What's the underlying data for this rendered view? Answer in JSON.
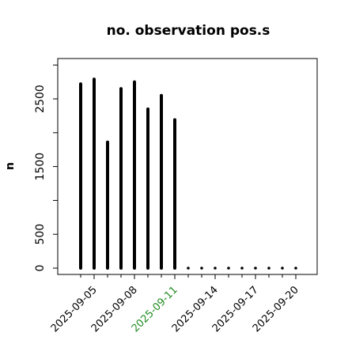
{
  "chart_data": {
    "type": "bar",
    "title": "no. observation pos.s",
    "ylabel": "n",
    "xlabel": "",
    "ylim": [
      -80,
      3000
    ],
    "yticks": [
      0,
      500,
      1500,
      2500
    ],
    "ytick_labels": [
      "0",
      "500",
      "1500",
      "2500"
    ],
    "y_minor_ticks": [
      1000,
      2000,
      3000
    ],
    "x": [
      "2025-09-04",
      "2025-09-05",
      "2025-09-06",
      "2025-09-07",
      "2025-09-08",
      "2025-09-09",
      "2025-09-10",
      "2025-09-11",
      "2025-09-12",
      "2025-09-13",
      "2025-09-14",
      "2025-09-15",
      "2025-09-16",
      "2025-09-17",
      "2025-09-18",
      "2025-09-19",
      "2025-09-20"
    ],
    "values": [
      2720,
      2790,
      1860,
      2650,
      2750,
      2350,
      2550,
      2190,
      0,
      0,
      0,
      0,
      0,
      0,
      0,
      0,
      0
    ],
    "xtick_labels": [
      "2025-09-05",
      "2025-09-08",
      "2025-09-11",
      "2025-09-14",
      "2025-09-17",
      "2025-09-20"
    ],
    "xtick_colors": [
      "#000000",
      "#000000",
      "#228B22",
      "#000000",
      "#000000",
      "#000000"
    ],
    "x_minor_ticks": [
      "2025-09-04",
      "2025-09-06",
      "2025-09-07",
      "2025-09-09",
      "2025-09-10",
      "2025-09-12",
      "2025-09-13",
      "2025-09-15",
      "2025-09-16",
      "2025-09-18",
      "2025-09-19"
    ],
    "bar_color": "#000000",
    "grid": false,
    "legend": "none"
  }
}
